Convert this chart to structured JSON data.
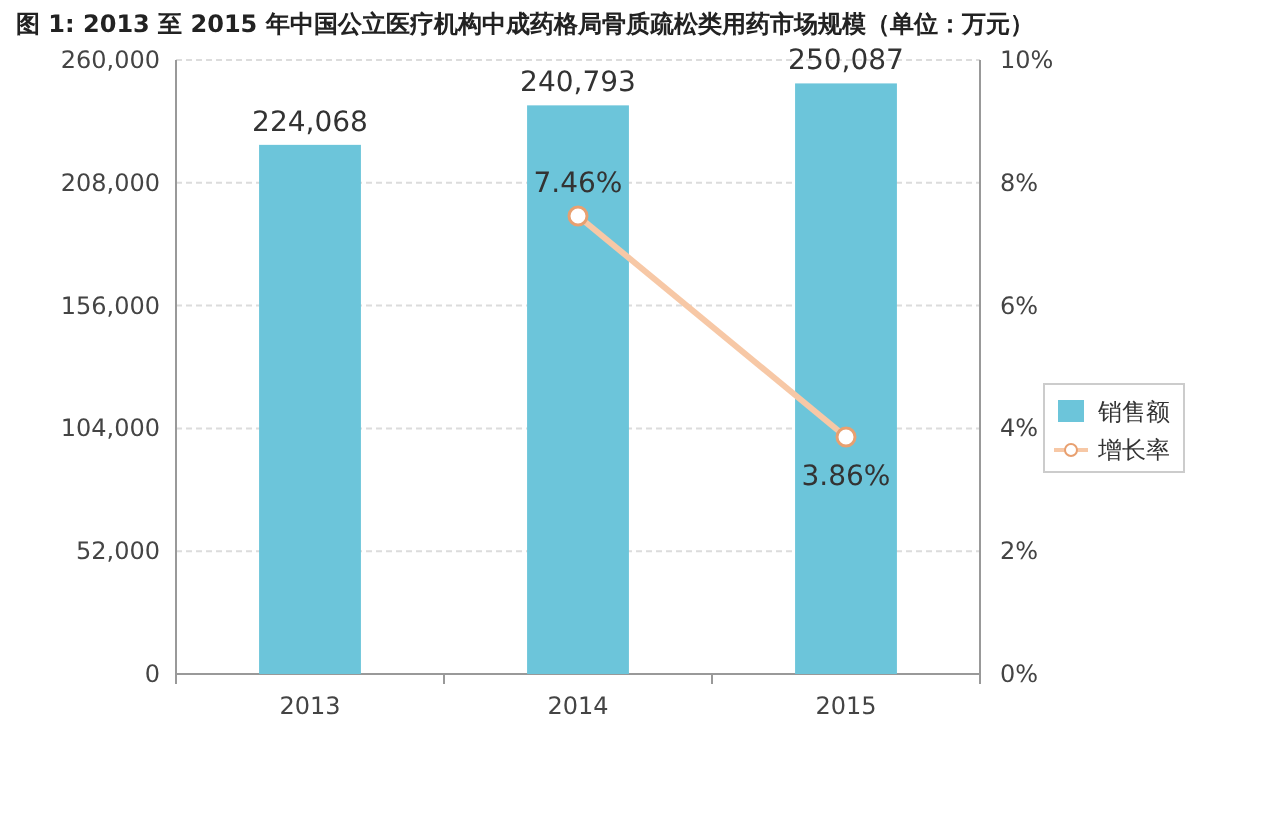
{
  "chart_data": {
    "type": "bar",
    "title": "图 1: 2013 至 2015 年中国公立医疗机构中成药格局骨质疏松类用药市场规模（单位：万元）",
    "categories": [
      "2013",
      "2014",
      "2015"
    ],
    "series": [
      {
        "name": "销售额",
        "color": "#6cc5da",
        "values": [
          224068,
          240793,
          250087
        ],
        "value_labels": [
          "224,068",
          "240,793",
          "250,087"
        ]
      },
      {
        "name": "增长率",
        "type": "line",
        "axis": "y2",
        "color": "#f7c8a6",
        "marker": "circle",
        "values": [
          null,
          7.46,
          3.86
        ],
        "value_labels": [
          null,
          "7.46%",
          "3.86%"
        ]
      }
    ],
    "ylim": [
      0,
      260000
    ],
    "yticks": [
      0,
      {
        "value": 52000,
        "label": "52,000"
      },
      {
        "value": 104000,
        "label": "104,000"
      },
      {
        "value": 156000,
        "label": "156,000"
      },
      {
        "value": 208000,
        "label": "208,000"
      },
      {
        "value": 260000,
        "label": "260,000"
      }
    ],
    "y2lim": [
      0,
      10
    ],
    "y2ticks": [
      {
        "value": 0,
        "label": "0%"
      },
      {
        "value": 2,
        "label": "2%"
      },
      {
        "value": 4,
        "label": "4%"
      },
      {
        "value": 6,
        "label": "6%"
      },
      {
        "value": 8,
        "label": "8%"
      },
      {
        "value": 10,
        "label": "10%"
      }
    ],
    "grid": "y",
    "legend": "right"
  }
}
